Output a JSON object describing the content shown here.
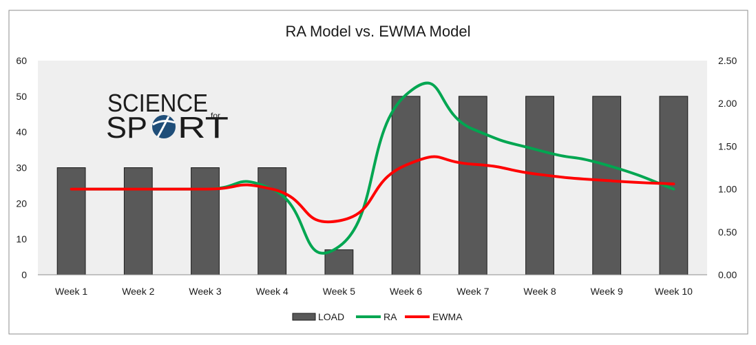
{
  "chart_data": {
    "type": "bar",
    "title": "RA Model vs. EWMA Model",
    "categories": [
      "Week 1",
      "Week 2",
      "Week 3",
      "Week 4",
      "Week 5",
      "Week 6",
      "Week 7",
      "Week 8",
      "Week 9",
      "Week 10"
    ],
    "series": [
      {
        "name": "LOAD",
        "type": "bar",
        "axis": "left",
        "color": "#595959",
        "values": [
          30,
          30,
          30,
          30,
          7,
          50,
          50,
          50,
          50,
          50
        ]
      },
      {
        "name": "RA",
        "type": "line",
        "axis": "right",
        "color": "#00a651",
        "values": [
          1.0,
          1.0,
          1.0,
          1.0,
          0.33,
          2.1,
          1.7,
          1.45,
          1.28,
          1.0
        ]
      },
      {
        "name": "EWMA",
        "type": "line",
        "axis": "right",
        "color": "#ff0000",
        "values": [
          1.0,
          1.0,
          1.0,
          1.0,
          0.63,
          1.28,
          1.29,
          1.17,
          1.1,
          1.06
        ]
      }
    ],
    "yleft": {
      "min": 0,
      "max": 60,
      "ticks": [
        "0",
        "10",
        "20",
        "30",
        "40",
        "50",
        "60"
      ]
    },
    "yright": {
      "min": 0,
      "max": 2.5,
      "ticks": [
        "0.00",
        "0.50",
        "1.00",
        "1.50",
        "2.00",
        "2.50"
      ]
    },
    "grid": false,
    "legend": "bottom",
    "plot_background": "#efefef"
  },
  "logo": {
    "line1": "SCIENCE",
    "small": "for",
    "line2a": "SP",
    "line2b": "RT"
  }
}
